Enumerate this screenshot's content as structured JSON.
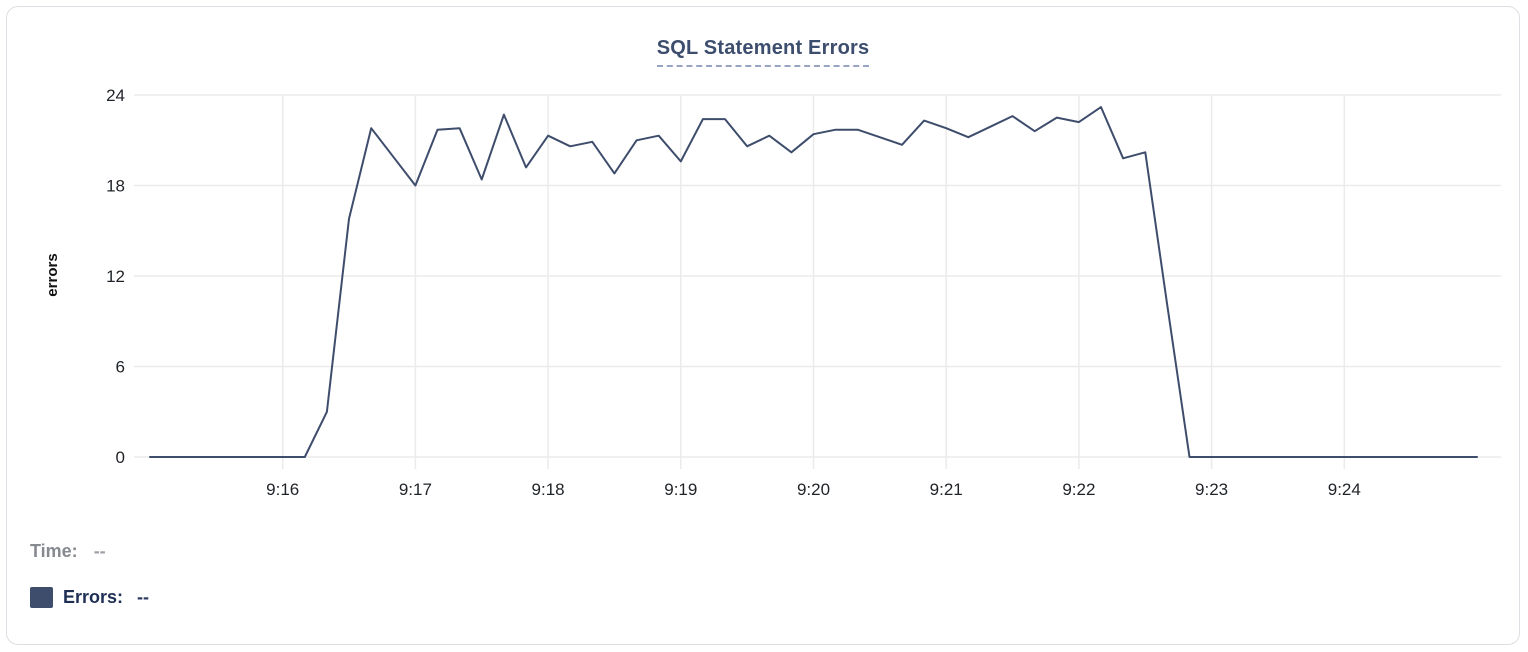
{
  "card": {
    "title": "SQL Statement Errors"
  },
  "tooltip_legend": {
    "time_label": "Time:",
    "time_value": "--",
    "errors_label": "Errors:",
    "errors_value": "--",
    "swatch_color": "#3e4d6b"
  },
  "colors": {
    "line": "#3e4d6c",
    "grid": "#ebebeb",
    "tick_text": "#1f2328",
    "title_text": "#3d4d6e",
    "title_underline": "#97a5c2",
    "card_border": "#dcdfe3"
  },
  "chart_data": {
    "type": "line",
    "title": "SQL Statement Errors",
    "xlabel": "",
    "ylabel": "errors",
    "x_tick_labels": [
      "9:16",
      "9:17",
      "9:18",
      "9:19",
      "9:20",
      "9:21",
      "9:22",
      "9:23",
      "9:24"
    ],
    "y_tick_labels": [
      "0",
      "6",
      "12",
      "18",
      "24"
    ],
    "y_ticks": [
      0,
      6,
      12,
      18,
      24
    ],
    "ylim": [
      0,
      24
    ],
    "grid": true,
    "legend_position": "below-left",
    "start_time": "9:15:00",
    "end_time": "9:25:00",
    "interval_seconds": 10,
    "series": [
      {
        "name": "Errors",
        "values": [
          0,
          0,
          0,
          0,
          0,
          0,
          0,
          0,
          3,
          15.8,
          21.8,
          19.9,
          18,
          21.7,
          21.8,
          18.4,
          22.7,
          19.2,
          21.3,
          20.6,
          20.9,
          18.8,
          21,
          21.3,
          19.6,
          22.4,
          22.4,
          20.6,
          21.3,
          20.2,
          21.4,
          21.7,
          21.7,
          21.2,
          20.7,
          22.3,
          21.8,
          21.2,
          21.9,
          22.6,
          21.6,
          22.5,
          22.2,
          23.2,
          19.8,
          20.2,
          10,
          0,
          0,
          0,
          0,
          0,
          0,
          0,
          0,
          0,
          0,
          0,
          0,
          0,
          0
        ]
      }
    ]
  }
}
